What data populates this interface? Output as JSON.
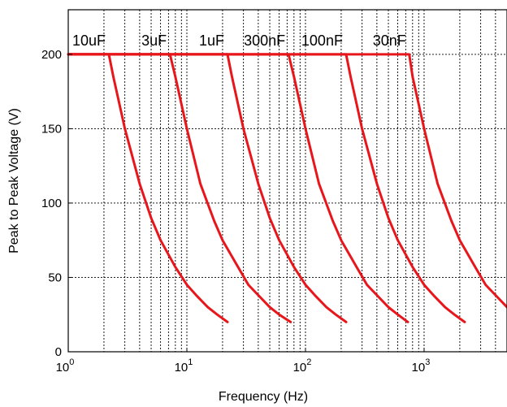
{
  "chart_data": {
    "type": "line",
    "xlabel": "Frequency (Hz)",
    "ylabel": "Peak to Peak Voltage (V)",
    "xscale": "log",
    "xlim": [
      1,
      5000
    ],
    "ylim": [
      0,
      230
    ],
    "grid": true,
    "x_ticks": [
      {
        "value": 1,
        "base": "10",
        "exp": "0"
      },
      {
        "value": 10,
        "base": "10",
        "exp": "1"
      },
      {
        "value": 100,
        "base": "10",
        "exp": "2"
      },
      {
        "value": 1000,
        "base": "10",
        "exp": "3"
      }
    ],
    "y_ticks": [
      0,
      50,
      100,
      150,
      200
    ],
    "series": [
      {
        "name": "10uF",
        "x": [
          1,
          2.2,
          2.4,
          3,
          4,
          5,
          6,
          8,
          10,
          12,
          15,
          18,
          22
        ],
        "y": [
          200,
          200,
          185,
          150,
          113,
          90,
          75,
          57,
          45,
          38,
          30,
          25,
          20
        ]
      },
      {
        "name": "3uF",
        "x": [
          1,
          7.2,
          8,
          10,
          13,
          17,
          20,
          27,
          33,
          40,
          50,
          60,
          75
        ],
        "y": [
          200,
          200,
          185,
          150,
          113,
          88,
          75,
          57,
          45,
          38,
          30,
          25,
          20
        ]
      },
      {
        "name": "1uF",
        "x": [
          1,
          22,
          24,
          30,
          40,
          50,
          60,
          80,
          100,
          120,
          150,
          180,
          220
        ],
        "y": [
          200,
          200,
          185,
          150,
          113,
          90,
          75,
          57,
          45,
          38,
          30,
          25,
          20
        ]
      },
      {
        "name": "300nF",
        "x": [
          1,
          72,
          80,
          100,
          130,
          170,
          200,
          270,
          330,
          400,
          500,
          600,
          730
        ],
        "y": [
          200,
          200,
          185,
          150,
          113,
          88,
          75,
          57,
          45,
          38,
          30,
          25,
          20
        ]
      },
      {
        "name": "100nF",
        "x": [
          1,
          220,
          240,
          300,
          400,
          500,
          600,
          800,
          1000,
          1200,
          1500,
          1800,
          2200
        ],
        "y": [
          200,
          200,
          185,
          150,
          113,
          90,
          75,
          57,
          45,
          38,
          30,
          25,
          20
        ]
      },
      {
        "name": "30nF",
        "x": [
          1,
          750,
          800,
          1000,
          1300,
          1700,
          2000,
          2700,
          3300,
          4000,
          5000
        ],
        "y": [
          200,
          200,
          185,
          150,
          113,
          88,
          75,
          57,
          45,
          38,
          30
        ]
      }
    ],
    "colors": {
      "line": "#e8161b",
      "grid": "#000000",
      "axis": "#000000"
    }
  }
}
